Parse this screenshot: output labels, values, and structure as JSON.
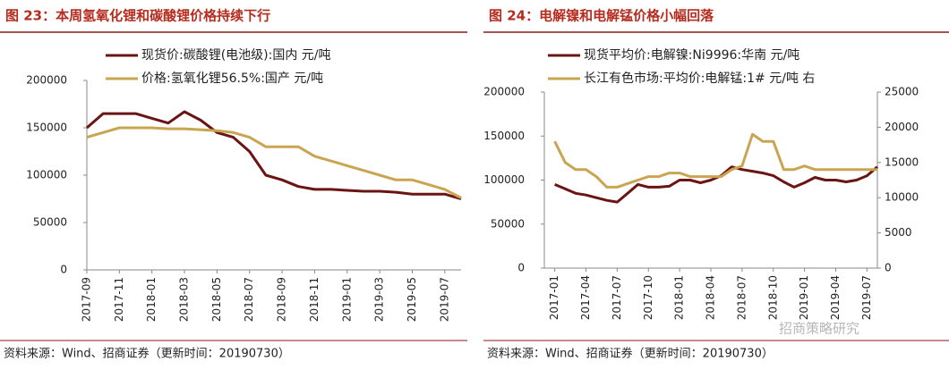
{
  "chart_data": [
    {
      "type": "line",
      "title": "图 23：本周氢氧化锂和碳酸锂价格持续下行",
      "source": "资料来源：Wind、招商证券（更新时间：20190730）",
      "x": [
        "2017-09",
        "2017-10",
        "2017-11",
        "2017-12",
        "2018-01",
        "2018-02",
        "2018-03",
        "2018-04",
        "2018-05",
        "2018-06",
        "2018-07",
        "2018-08",
        "2018-09",
        "2018-10",
        "2018-11",
        "2018-12",
        "2019-01",
        "2019-02",
        "2019-03",
        "2019-04",
        "2019-05",
        "2019-06",
        "2019-07",
        "2019-08"
      ],
      "xlim": [
        "2017-09",
        "2019-08"
      ],
      "xticks": [
        "2017-09",
        "2017-11",
        "2018-01",
        "2018-03",
        "2018-05",
        "2018-07",
        "2018-09",
        "2018-11",
        "2019-01",
        "2019-03",
        "2019-05",
        "2019-07"
      ],
      "ylim": [
        0,
        200000
      ],
      "yticks": [
        0,
        50000,
        100000,
        150000,
        200000
      ],
      "series": [
        {
          "name": "现货价:碳酸锂(电池级):国内 元/吨",
          "color": "#6b1414",
          "values": [
            150000,
            165000,
            165000,
            165000,
            160000,
            155000,
            167000,
            158000,
            145000,
            140000,
            125000,
            100000,
            95000,
            88000,
            85000,
            85000,
            84000,
            83000,
            83000,
            82000,
            80000,
            80000,
            80000,
            75000
          ]
        },
        {
          "name": "价格:氢氧化锂56.5%:国产 元/吨",
          "color": "#c9a552",
          "values": [
            140000,
            145000,
            150000,
            150000,
            150000,
            149000,
            149000,
            148000,
            147000,
            145000,
            140000,
            130000,
            130000,
            130000,
            120000,
            115000,
            110000,
            105000,
            100000,
            95000,
            95000,
            90000,
            85000,
            76000
          ]
        }
      ]
    },
    {
      "type": "line",
      "title": "图 24：电解镍和电解锰价格小幅回落",
      "source": "资料来源：Wind、招商证券（更新时间：20190730）",
      "watermark": "招商策略研究",
      "x": [
        "2017-01",
        "2017-02",
        "2017-03",
        "2017-04",
        "2017-05",
        "2017-06",
        "2017-07",
        "2017-08",
        "2017-09",
        "2017-10",
        "2017-11",
        "2017-12",
        "2018-01",
        "2018-02",
        "2018-03",
        "2018-04",
        "2018-05",
        "2018-06",
        "2018-07",
        "2018-08",
        "2018-09",
        "2018-10",
        "2018-11",
        "2018-12",
        "2019-01",
        "2019-02",
        "2019-03",
        "2019-04",
        "2019-05",
        "2019-06",
        "2019-07",
        "2019-08"
      ],
      "xlim": [
        "2016-12",
        "2019-08"
      ],
      "xticks": [
        "2017-01",
        "2017-04",
        "2017-07",
        "2017-10",
        "2018-01",
        "2018-04",
        "2018-07",
        "2018-10",
        "2019-01",
        "2019-04",
        "2019-07"
      ],
      "ylim": [
        0,
        200000
      ],
      "yticks": [
        0,
        50000,
        100000,
        150000,
        200000
      ],
      "y2lim": [
        0,
        25000
      ],
      "y2ticks": [
        0,
        5000,
        10000,
        15000,
        20000,
        25000
      ],
      "series": [
        {
          "name": "现货平均价:电解镍:Ni9996:华南 元/吨",
          "color": "#6b1414",
          "values": [
            95000,
            90000,
            85000,
            83000,
            80000,
            77000,
            75000,
            85000,
            95000,
            92000,
            92000,
            93000,
            100000,
            100000,
            97000,
            100000,
            105000,
            115000,
            112000,
            110000,
            108000,
            105000,
            98000,
            92000,
            97000,
            103000,
            100000,
            100000,
            98000,
            100000,
            105000,
            115000
          ]
        },
        {
          "name": "长江有色市场:平均价:电解锰:1# 元/吨 右",
          "color": "#c9a552",
          "axis": "y2",
          "values": [
            18000,
            15000,
            14000,
            14000,
            13000,
            11500,
            11500,
            12000,
            12500,
            13000,
            13000,
            13500,
            13500,
            13000,
            13000,
            13000,
            13000,
            14000,
            14500,
            19000,
            18000,
            18000,
            14000,
            14000,
            14500,
            14000,
            14000,
            14000,
            14000,
            14000,
            14000,
            14000
          ]
        }
      ]
    }
  ]
}
